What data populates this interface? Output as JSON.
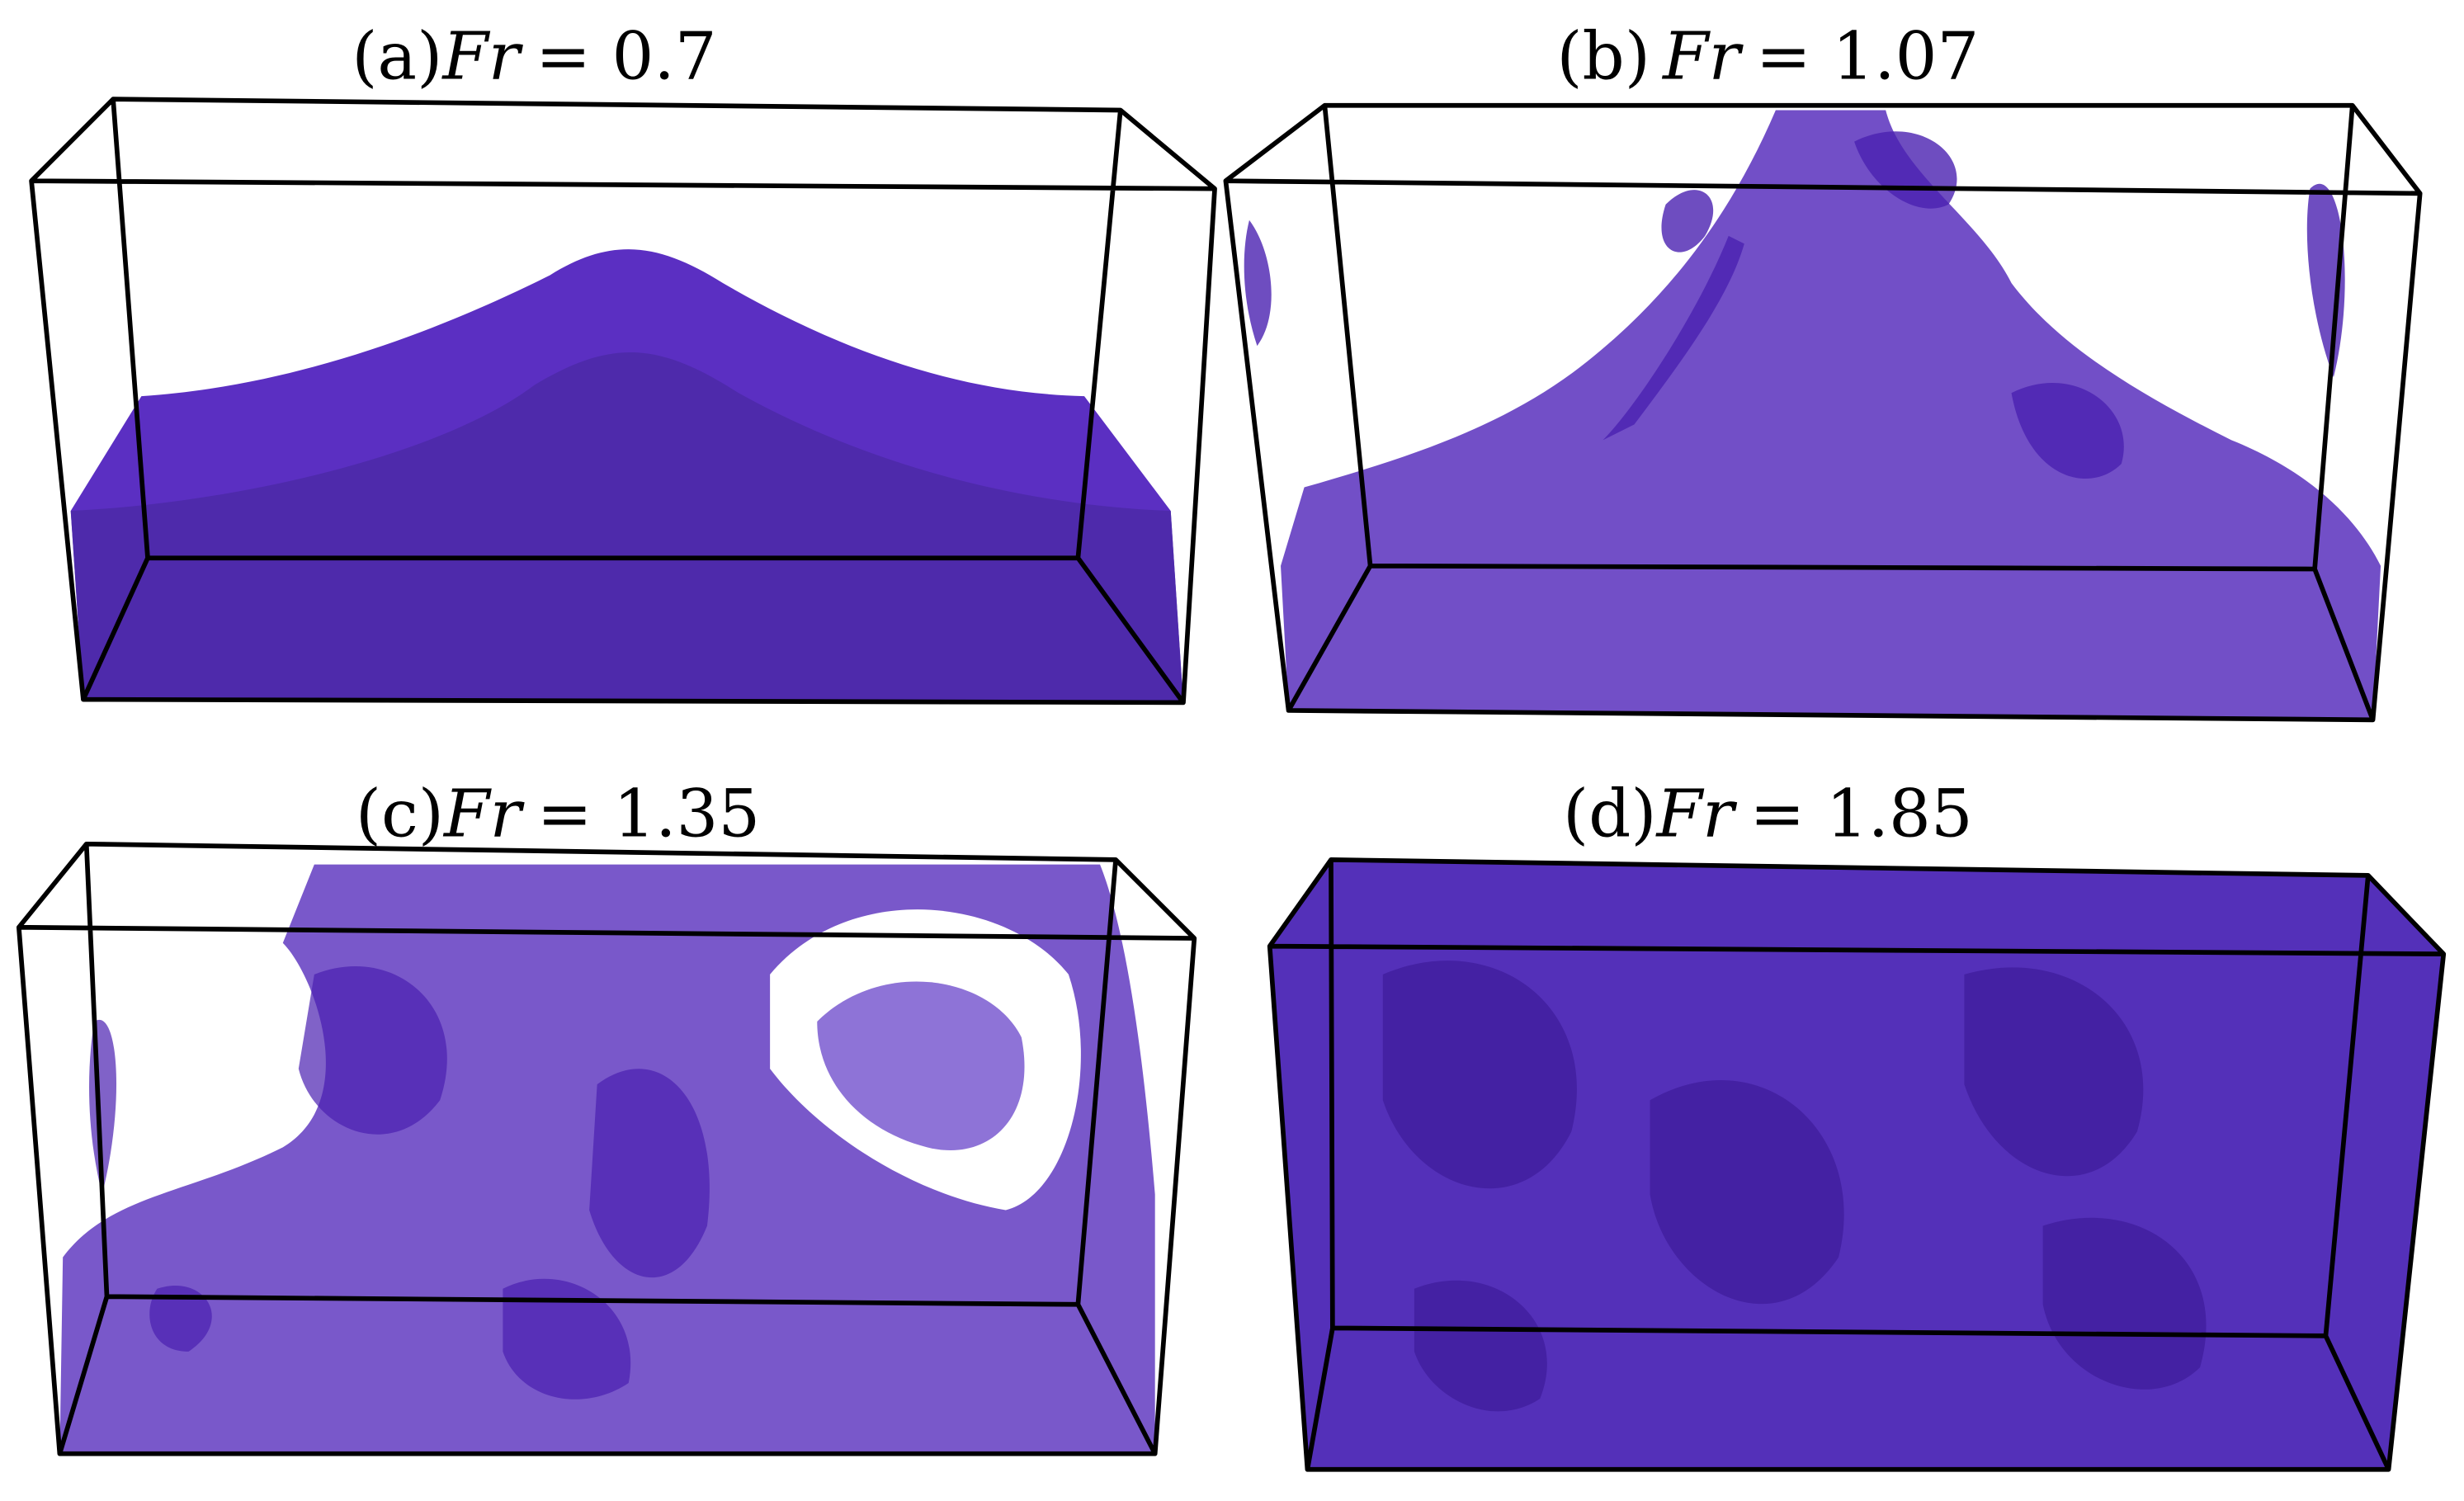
{
  "panels": [
    {
      "label": "(a)",
      "symbol": "Fr",
      "relation": "= 0.7"
    },
    {
      "label": "(b)",
      "symbol": "Fr",
      "relation": "= 1.07"
    },
    {
      "label": "(c)",
      "symbol": "Fr",
      "relation": "= 1.35"
    },
    {
      "label": "(d)",
      "symbol": "Fr",
      "relation": "= 1.85"
    }
  ]
}
